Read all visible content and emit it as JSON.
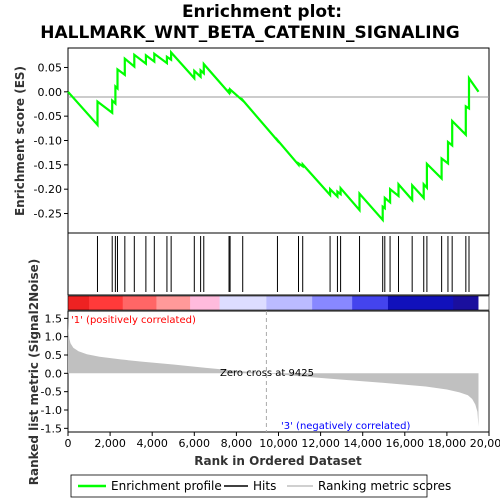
{
  "chart_data": {
    "type": "line",
    "title_line1": "Enrichment plot:",
    "title_line2": "HALLMARK_WNT_BETA_CATENIN_SIGNALING",
    "es_ylabel": "Enrichment score (ES)",
    "metric_ylabel": "Ranked list metric (Signal2Noise)",
    "xlabel": "Rank in Ordered Dataset",
    "x_ticks": [
      "0",
      "2,000",
      "4,000",
      "6,000",
      "8,000",
      "10,000",
      "12,000",
      "14,000",
      "16,000",
      "18,000",
      "20,000"
    ],
    "x_tick_values": [
      0,
      2000,
      4000,
      6000,
      8000,
      10000,
      12000,
      14000,
      16000,
      18000,
      20000
    ],
    "xlim": [
      0,
      20000
    ],
    "es_ylim": [
      -0.29,
      0.09
    ],
    "es_ticks": [
      0.05,
      0.0,
      -0.05,
      -0.1,
      -0.15,
      -0.2,
      -0.25
    ],
    "es_tick_labels": [
      "0.05",
      "0.00",
      "-0.05",
      "-0.10",
      "-0.15",
      "-0.20",
      "-0.25"
    ],
    "metric_ylim": [
      -1.6,
      1.7
    ],
    "metric_ticks": [
      1.5,
      1.0,
      0.5,
      0.0,
      -0.5,
      -1.0,
      -1.5
    ],
    "metric_tick_labels": [
      "1.5",
      "1.0",
      "0.5",
      "0.0",
      "-0.5",
      "-1.0",
      "-1.5"
    ],
    "hits": [
      1400,
      2100,
      2250,
      2350,
      2700,
      3150,
      3700,
      4100,
      4700,
      4900,
      6000,
      6300,
      6450,
      7650,
      7700,
      8300,
      9950,
      10950,
      11150,
      12450,
      12800,
      12950,
      13850,
      14950,
      15050,
      15300,
      15700,
      16350,
      16900,
      17050,
      17750,
      18050,
      18250,
      18900,
      19050
    ],
    "es_profile": {
      "x": [
        0,
        1400,
        1400,
        2100,
        2100,
        2250,
        2250,
        2350,
        2350,
        2700,
        2700,
        3150,
        3150,
        3700,
        3700,
        4100,
        4100,
        4700,
        4700,
        4900,
        4900,
        6000,
        6000,
        6300,
        6300,
        6450,
        6450,
        7650,
        7650,
        7700,
        7700,
        8300,
        8300,
        9950,
        9950,
        10950,
        10950,
        11150,
        11150,
        12450,
        12450,
        12800,
        12800,
        12950,
        12950,
        13850,
        13850,
        14950,
        14950,
        15050,
        15050,
        15300,
        15300,
        15700,
        15700,
        16350,
        16350,
        16900,
        16900,
        17050,
        17050,
        17750,
        17750,
        18050,
        18050,
        18250,
        18250,
        18900,
        18900,
        19050,
        19050,
        19500
      ],
      "y": [
        0.0,
        -0.068,
        -0.02,
        -0.043,
        -0.018,
        -0.024,
        0.011,
        0.007,
        0.046,
        0.035,
        0.068,
        0.052,
        0.076,
        0.058,
        0.075,
        0.062,
        0.078,
        0.059,
        0.072,
        0.066,
        0.081,
        0.028,
        0.043,
        0.031,
        0.044,
        0.038,
        0.057,
        -0.002,
        0.002,
        0.0,
        0.005,
        -0.018,
        -0.017,
        -0.1,
        -0.099,
        -0.15,
        -0.147,
        -0.153,
        -0.149,
        -0.212,
        -0.2,
        -0.215,
        -0.205,
        -0.21,
        -0.198,
        -0.243,
        -0.209,
        -0.263,
        -0.236,
        -0.239,
        -0.218,
        -0.227,
        -0.2,
        -0.214,
        -0.19,
        -0.222,
        -0.192,
        -0.218,
        -0.19,
        -0.197,
        -0.148,
        -0.178,
        -0.137,
        -0.147,
        -0.103,
        -0.11,
        -0.06,
        -0.088,
        -0.03,
        -0.034,
        0.028,
        0.0
      ]
    },
    "metric_profile": {
      "x": [
        0,
        20,
        60,
        120,
        250,
        500,
        900,
        1500,
        2500,
        3500,
        5000,
        6500,
        8000,
        9425,
        11000,
        13000,
        15000,
        17000,
        18000,
        18600,
        19000,
        19200,
        19350,
        19450,
        19500
      ],
      "y": [
        1.6,
        1.2,
        0.95,
        0.82,
        0.7,
        0.6,
        0.52,
        0.45,
        0.38,
        0.32,
        0.24,
        0.15,
        0.07,
        0.0,
        -0.08,
        -0.17,
        -0.26,
        -0.36,
        -0.44,
        -0.52,
        -0.6,
        -0.7,
        -0.85,
        -1.05,
        -1.45
      ]
    },
    "positive_label": "'1' (positively correlated)",
    "negative_label": "'3' (negatively correlated)",
    "zero_cross_label": "Zero cross at 9425",
    "zero_cross": 9425,
    "legend": {
      "placement": "bottom",
      "items": [
        "Enrichment profile",
        "Hits",
        "Ranking metric scores"
      ]
    },
    "colors": {
      "profile": "#00ff00",
      "hits": "#000000",
      "metric_fill": "#c0c0c0",
      "positive_text": "#ff0000",
      "negative_text": "#0000ff",
      "bar_segments": [
        "#ee2222",
        "#ff3a3a",
        "#ff6666",
        "#ff9999",
        "#ffbbdd",
        "#ddddff",
        "#bbbbff",
        "#8888ff",
        "#4444ee",
        "#1111bb"
      ]
    }
  }
}
